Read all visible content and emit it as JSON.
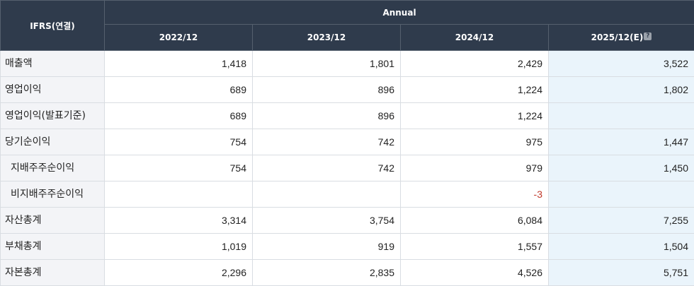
{
  "header": {
    "ifrs_label": "IFRS(연결)",
    "annual_label": "Annual",
    "periods": [
      "2022/12",
      "2023/12",
      "2024/12",
      "2025/12(E)"
    ],
    "help_icon": "question-icon"
  },
  "rows": [
    {
      "label": "매출액",
      "values": [
        "1,418",
        "1,801",
        "2,429",
        "3,522"
      ]
    },
    {
      "label": "영업이익",
      "values": [
        "689",
        "896",
        "1,224",
        "1,802"
      ]
    },
    {
      "label": "영업이익(발표기준)",
      "values": [
        "689",
        "896",
        "1,224",
        ""
      ]
    },
    {
      "label": "당기순이익",
      "values": [
        "754",
        "742",
        "975",
        "1,447"
      ]
    },
    {
      "label": "지배주주순이익",
      "values": [
        "754",
        "742",
        "979",
        "1,450"
      ]
    },
    {
      "label": "비지배주주순이익",
      "values": [
        "",
        "",
        "-3",
        ""
      ]
    },
    {
      "label": "자산총계",
      "values": [
        "3,314",
        "3,754",
        "6,084",
        "7,255"
      ]
    },
    {
      "label": "부채총계",
      "values": [
        "1,019",
        "919",
        "1,557",
        "1,504"
      ]
    },
    {
      "label": "자본총계",
      "values": [
        "2,296",
        "2,835",
        "4,526",
        "5,751"
      ]
    }
  ],
  "colors": {
    "header_bg": "#2f3b4c",
    "label_bg": "#f3f4f7",
    "estimate_bg": "#eaf4fb",
    "negative": "#c0392b"
  }
}
